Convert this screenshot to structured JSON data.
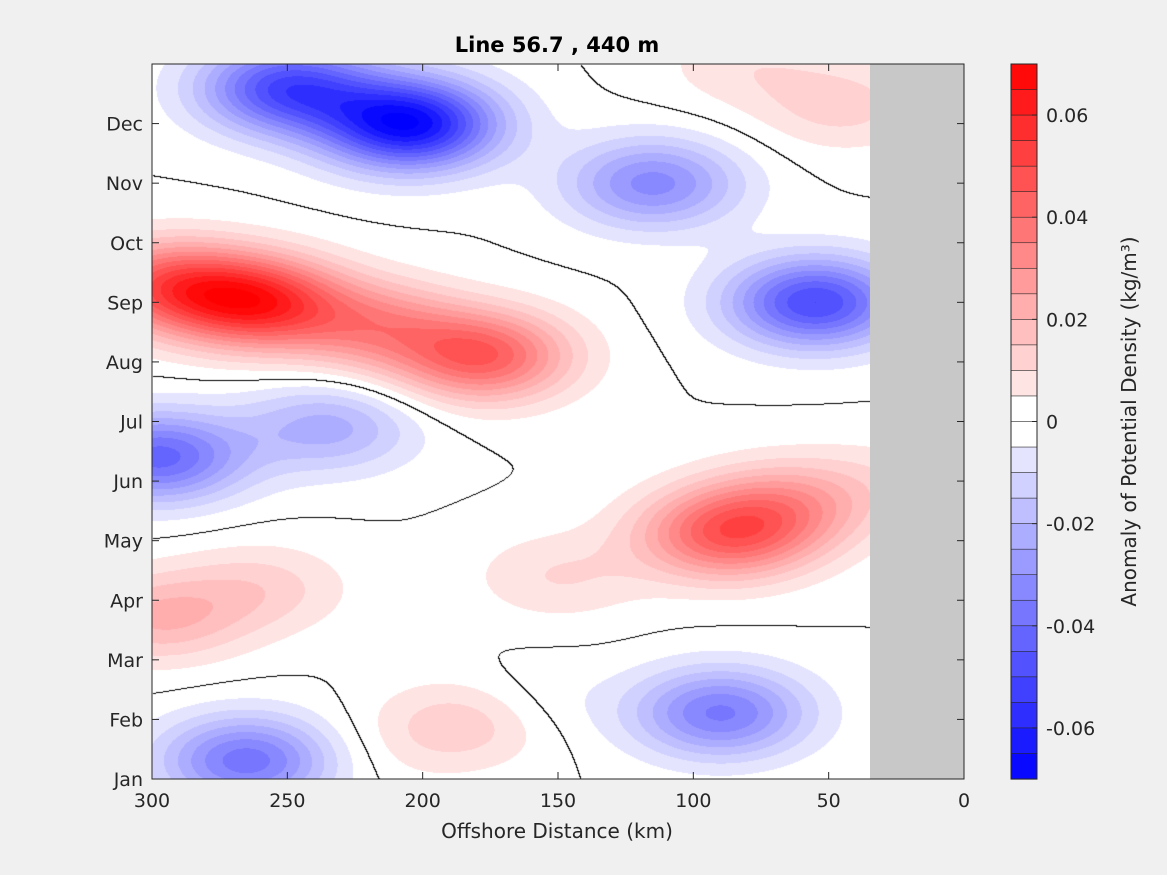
{
  "chart_data": {
    "type": "heatmap",
    "subtype": "filled-contour",
    "title": "Line 56.7 , 440 m",
    "xlabel": "Offshore Distance (km)",
    "ylabel": "",
    "colorbar_label": "Anomaly of Potential Density (kg/m³)",
    "xlim": [
      300,
      0
    ],
    "x_reversed": true,
    "xticks": [
      300,
      250,
      200,
      150,
      100,
      50,
      0
    ],
    "ylim": [
      1,
      13
    ],
    "yticks": [
      "Jan",
      "Feb",
      "Mar",
      "Apr",
      "May",
      "Jun",
      "Jul",
      "Aug",
      "Sep",
      "Oct",
      "Nov",
      "Dec"
    ],
    "data_extent_km": [
      300,
      35
    ],
    "no_data_color": "#c8c8c8",
    "clim": [
      -0.07,
      0.07
    ],
    "contour_step": 0.005,
    "colorbar_ticks": [
      "0.06",
      "0.04",
      "0.02",
      "0",
      "-0.02",
      "-0.04",
      "-0.06"
    ],
    "colormap": {
      "negative": "#0000ff",
      "zero": "#ffffff",
      "positive": "#ff0000"
    },
    "zero_contour_color": "#000000",
    "features": [
      {
        "km": 205,
        "month": 12.0,
        "value": -0.068
      },
      {
        "km": 250,
        "month": 12.6,
        "value": -0.05
      },
      {
        "km": 115,
        "month": 11.0,
        "value": -0.032
      },
      {
        "km": 55,
        "month": 9.0,
        "value": -0.05
      },
      {
        "km": 262,
        "month": 9.0,
        "value": 0.056
      },
      {
        "km": 295,
        "month": 9.3,
        "value": 0.04
      },
      {
        "km": 178,
        "month": 8.1,
        "value": 0.044
      },
      {
        "km": 218,
        "month": 8.6,
        "value": 0.028
      },
      {
        "km": 88,
        "month": 5.1,
        "value": 0.042
      },
      {
        "km": 65,
        "month": 5.6,
        "value": 0.022
      },
      {
        "km": 260,
        "month": 4.2,
        "value": 0.012
      },
      {
        "km": 150,
        "month": 4.4,
        "value": 0.01
      },
      {
        "km": 45,
        "month": 12.3,
        "value": 0.012
      },
      {
        "km": 82,
        "month": 13.0,
        "value": 0.008
      },
      {
        "km": 298,
        "month": 6.4,
        "value": -0.042
      },
      {
        "km": 235,
        "month": 6.9,
        "value": -0.022
      },
      {
        "km": 90,
        "month": 2.1,
        "value": -0.036
      },
      {
        "km": 265,
        "month": 1.3,
        "value": -0.038
      },
      {
        "km": 210,
        "month": 1.5,
        "value": 0.004
      },
      {
        "km": 165,
        "month": 2.2,
        "value": -0.01
      },
      {
        "km": 180,
        "month": 2.0,
        "value": 0.018
      },
      {
        "km": 298,
        "month": 3.7,
        "value": 0.02
      },
      {
        "km": 135,
        "month": 6.0,
        "value": 0.0
      },
      {
        "km": 30,
        "month": 6.0,
        "value": 0.006
      }
    ]
  }
}
